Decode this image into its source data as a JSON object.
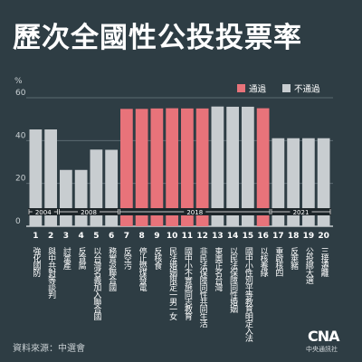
{
  "title": "歷次全國性公投投票率",
  "unit_label": "%",
  "source": "資料來源：中選會",
  "logo": {
    "mark": "CNA",
    "name": "中央通訊社"
  },
  "colors": {
    "background": "#2e3d44",
    "passed": "#e8737a",
    "failed": "#c8cdd0",
    "grid": "#5b6a71"
  },
  "chart_data": {
    "type": "bar",
    "ylim": [
      0,
      60
    ],
    "yticks": [
      0,
      20,
      40,
      60
    ],
    "legend_position": "top-right",
    "legend": [
      {
        "label": "通過",
        "status": "passed"
      },
      {
        "label": "不通過",
        "status": "failed"
      }
    ],
    "categories": [
      "1",
      "2",
      "3",
      "4",
      "5",
      "6",
      "7",
      "8",
      "9",
      "10",
      "11",
      "12",
      "13",
      "14",
      "15",
      "16",
      "17",
      "18",
      "19",
      "20"
    ],
    "names": [
      "強化國防",
      "與中共對等談判",
      "討黨產",
      "反貪腐",
      "以台灣名義加入聯合國",
      "務實返聯合國",
      "反空污",
      "停止燃煤發電",
      "反核食",
      "民法婚姻限定一男一女",
      "國中小不實施同志教育",
      "非民法保障同性共同生活",
      "東奧正名台灣",
      "以民法保障同性婚姻",
      "國中小性別平等教育明定入法",
      "以核養綠",
      "重啟核四",
      "反萊豬",
      "公投綁大選",
      "三接遷離"
    ],
    "values": [
      45.2,
      45.2,
      26.3,
      26.3,
      35.8,
      35.7,
      54.8,
      54.8,
      55.0,
      55.1,
      55.0,
      55.0,
      55.9,
      55.8,
      55.8,
      55.1,
      41.1,
      41.1,
      41.1,
      41.1
    ],
    "status": [
      "failed",
      "failed",
      "failed",
      "failed",
      "failed",
      "failed",
      "passed",
      "passed",
      "passed",
      "passed",
      "passed",
      "passed",
      "failed",
      "failed",
      "failed",
      "passed",
      "failed",
      "failed",
      "failed",
      "failed"
    ],
    "years": [
      {
        "label": "2004",
        "from": 1,
        "to": 2
      },
      {
        "label": "2008",
        "from": 3,
        "to": 6
      },
      {
        "label": "2018",
        "from": 7,
        "to": 16
      },
      {
        "label": "2021",
        "from": 17,
        "to": 20
      }
    ]
  }
}
